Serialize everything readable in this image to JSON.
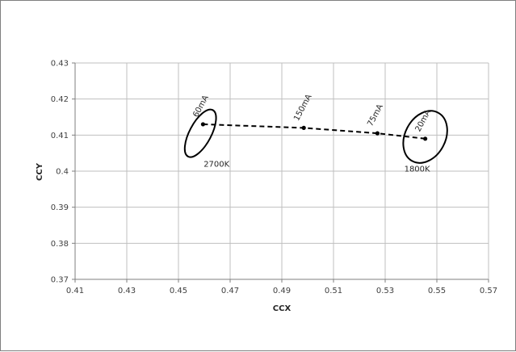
{
  "chart_data": {
    "type": "scatter",
    "title": "",
    "xlabel": "CCX",
    "ylabel": "CCY",
    "xlim": [
      0.41,
      0.57
    ],
    "ylim": [
      0.37,
      0.43
    ],
    "x_ticks": [
      "0.41",
      "0.43",
      "0.45",
      "0.47",
      "0.49",
      "0.51",
      "0.53",
      "0.55",
      "0.57"
    ],
    "y_ticks": [
      "0.43",
      "0.42",
      "0.41",
      "0.4",
      "0.39",
      "0.38",
      "0.37"
    ],
    "x_tick_values": [
      0.41,
      0.43,
      0.45,
      0.47,
      0.49,
      0.51,
      0.53,
      0.55,
      0.57
    ],
    "y_tick_values": [
      0.43,
      0.42,
      0.41,
      0.4,
      0.39,
      0.38,
      0.37
    ],
    "grid": true,
    "series": [
      {
        "line_style": "dashed",
        "color": "#000000",
        "points": [
          {
            "x": 0.4595,
            "y": 0.413,
            "label": "60mA"
          },
          {
            "x": 0.4985,
            "y": 0.412,
            "label": "150mA"
          },
          {
            "x": 0.527,
            "y": 0.4105,
            "label": "75mA"
          },
          {
            "x": 0.5455,
            "y": 0.409,
            "label": "20mA"
          }
        ]
      }
    ],
    "ellipses": [
      {
        "cx": 0.4585,
        "cy": 0.4105,
        "rx": 0.0042,
        "ry": 0.0073,
        "label": "2700K"
      },
      {
        "cx": 0.5455,
        "cy": 0.4095,
        "rx": 0.0078,
        "ry": 0.0076,
        "label": "1800K"
      }
    ]
  }
}
